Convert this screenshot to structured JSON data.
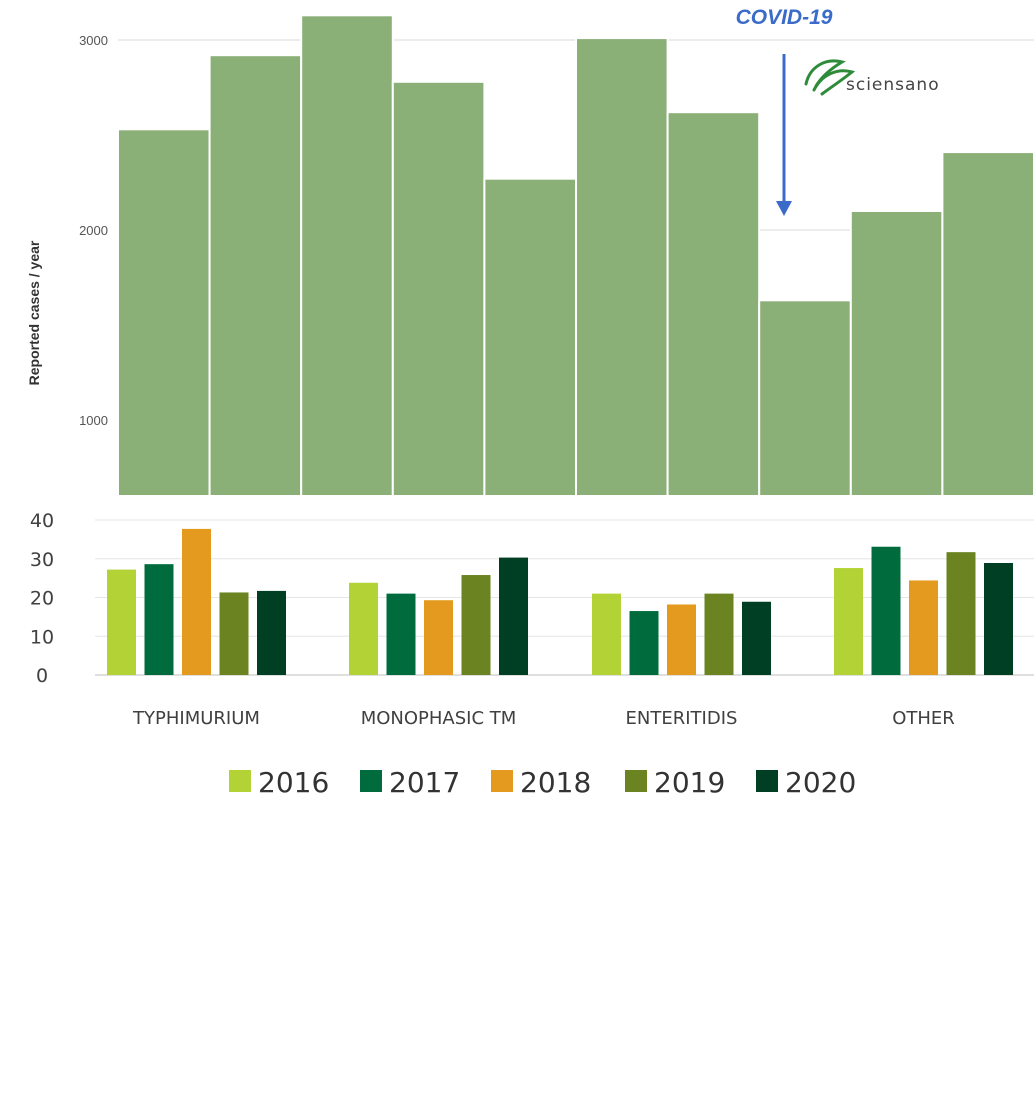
{
  "chart_data": [
    {
      "type": "bar",
      "ylabel": "Reported cases / year",
      "ylim": [
        600,
        3200
      ],
      "yticks": [
        1000,
        2000,
        3000
      ],
      "values": [
        2530,
        2920,
        3130,
        2780,
        2270,
        3010,
        2620,
        1630,
        2100,
        2410
      ],
      "bar_color": "#8AAF77",
      "grid": true,
      "annotation": {
        "text": "COVID-19",
        "color": "#3A6BC8",
        "points_to_bar_index": 7
      },
      "logo": {
        "text": "sciensano",
        "icon": "sciensano-leaf-icon"
      }
    },
    {
      "type": "bar",
      "categories": [
        "TYPHIMURIUM",
        "MONOPHASIC TM",
        "ENTERITIDIS",
        "OTHER"
      ],
      "ylim": [
        0,
        40
      ],
      "yticks": [
        "0",
        "10",
        "20",
        "30",
        "40"
      ],
      "grid": true,
      "legend_position": "bottom",
      "series": [
        {
          "name": "2016",
          "color": "#B3D235",
          "values": [
            27.2,
            23.8,
            21.0,
            27.6
          ]
        },
        {
          "name": "2017",
          "color": "#006B3C",
          "values": [
            28.6,
            21.0,
            16.5,
            33.1
          ]
        },
        {
          "name": "2018",
          "color": "#E39A1F",
          "values": [
            37.7,
            19.3,
            18.2,
            24.4
          ]
        },
        {
          "name": "2019",
          "color": "#6B8320",
          "values": [
            21.3,
            25.8,
            21.0,
            31.7
          ]
        },
        {
          "name": "2020",
          "color": "#003F24",
          "values": [
            21.7,
            30.3,
            18.9,
            28.9
          ]
        }
      ]
    }
  ]
}
